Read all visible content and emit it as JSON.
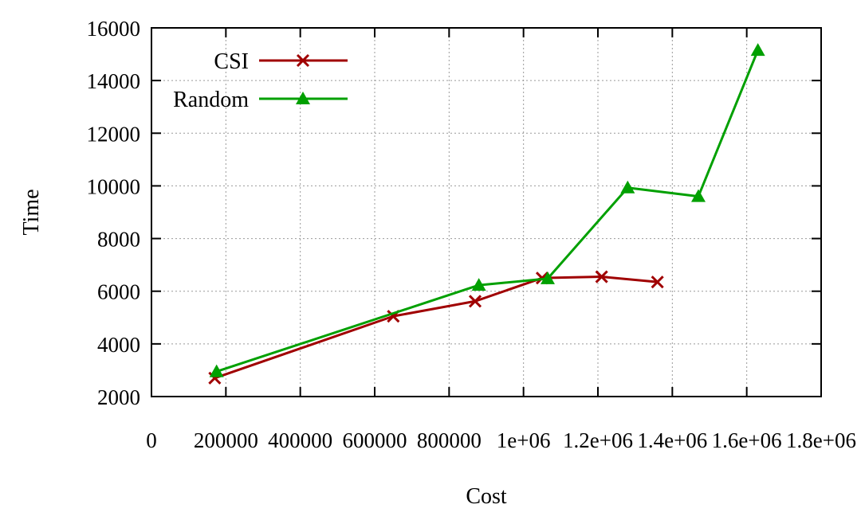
{
  "chart_data": {
    "type": "line",
    "xlabel": "Cost",
    "ylabel": "Time",
    "xlim": [
      0,
      1800000
    ],
    "ylim": [
      2000,
      16000
    ],
    "x_ticks": [
      {
        "value": 0,
        "label": "0"
      },
      {
        "value": 200000,
        "label": "200000"
      },
      {
        "value": 400000,
        "label": "400000"
      },
      {
        "value": 600000,
        "label": "600000"
      },
      {
        "value": 800000,
        "label": "800000"
      },
      {
        "value": 1000000,
        "label": "1e+06"
      },
      {
        "value": 1200000,
        "label": "1.2e+06"
      },
      {
        "value": 1400000,
        "label": "1.4e+06"
      },
      {
        "value": 1600000,
        "label": "1.6e+06"
      },
      {
        "value": 1800000,
        "label": "1.8e+06"
      }
    ],
    "y_ticks": [
      {
        "value": 2000,
        "label": "2000"
      },
      {
        "value": 4000,
        "label": "4000"
      },
      {
        "value": 6000,
        "label": "6000"
      },
      {
        "value": 8000,
        "label": "8000"
      },
      {
        "value": 10000,
        "label": "10000"
      },
      {
        "value": 12000,
        "label": "12000"
      },
      {
        "value": 14000,
        "label": "14000"
      },
      {
        "value": 16000,
        "label": "16000"
      }
    ],
    "grid": true,
    "legend_position": "top-left",
    "series": [
      {
        "name": "CSI",
        "color": "#a00000",
        "marker": "x",
        "points": [
          {
            "x": 170000,
            "y": 2700
          },
          {
            "x": 650000,
            "y": 5050
          },
          {
            "x": 870000,
            "y": 5620
          },
          {
            "x": 1050000,
            "y": 6500
          },
          {
            "x": 1210000,
            "y": 6550
          },
          {
            "x": 1360000,
            "y": 6350
          }
        ]
      },
      {
        "name": "Random",
        "color": "#00a000",
        "marker": "triangle",
        "points": [
          {
            "x": 175000,
            "y": 2950
          },
          {
            "x": 880000,
            "y": 6230
          },
          {
            "x": 1065000,
            "y": 6480
          },
          {
            "x": 1280000,
            "y": 9930
          },
          {
            "x": 1470000,
            "y": 9600
          },
          {
            "x": 1630000,
            "y": 15150
          }
        ]
      }
    ]
  }
}
